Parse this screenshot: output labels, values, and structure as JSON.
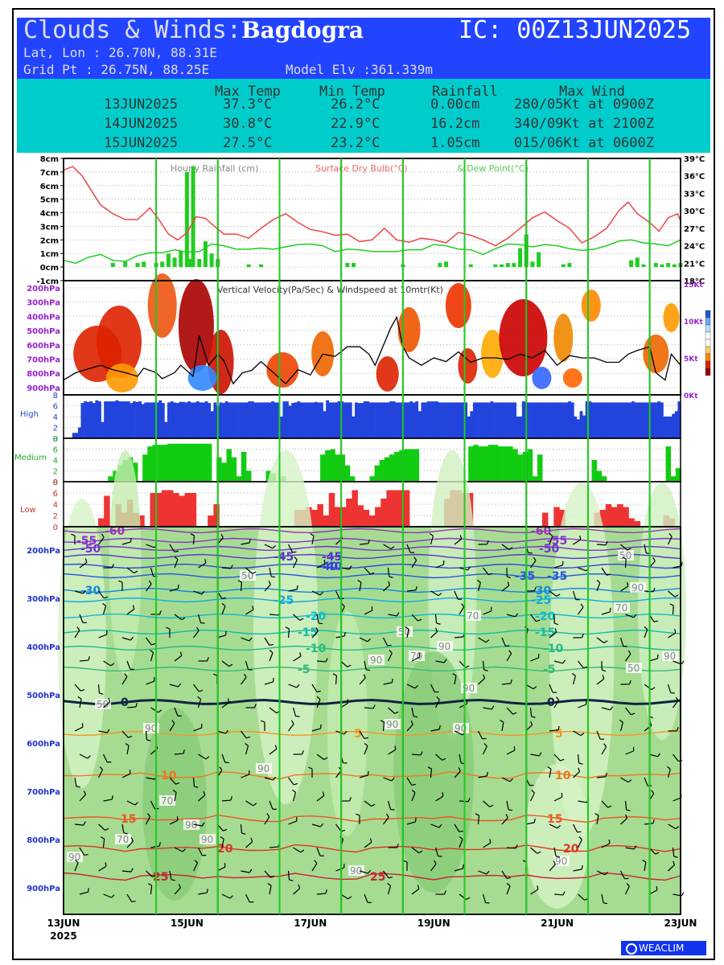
{
  "header": {
    "title": "Clouds & Winds:",
    "station": "Bagdogra",
    "ic": "IC: 00Z13JUN2025",
    "latlon": "Lat, Lon : 26.70N, 88.31E",
    "gridpt": "Grid Pt  : 26.75N, 88.25E",
    "elev": "Model Elv :361.339m"
  },
  "summary": {
    "headers": [
      "Max Temp",
      "Min Temp",
      "Rainfall",
      "Max Wind"
    ],
    "rows": [
      {
        "date": "13JUN2025",
        "max": "37.3°C",
        "min": "26.2°C",
        "rain": "0.00cm",
        "wind": "280/05Kt at 0900Z"
      },
      {
        "date": "14JUN2025",
        "max": "30.8°C",
        "min": "22.9°C",
        "rain": "16.2cm",
        "wind": "340/09Kt at 2100Z"
      },
      {
        "date": "15JUN2025",
        "max": "27.5°C",
        "min": "23.2°C",
        "rain": "1.05cm",
        "wind": "015/06Kt at 0600Z"
      }
    ]
  },
  "colors": {
    "rain": "#22cc22",
    "drybulb": "#ee4444",
    "dewpoint": "#22cc22",
    "high": "#2244dd",
    "medium": "#11cc11",
    "low": "#ee3333",
    "day_line": "#22cc22"
  },
  "chart_data": [
    {
      "type": "line",
      "title": "Hourly Rainfall (cm)    Surface Dry Bulb(°C)  & Dew Point(°C)",
      "legend": [
        "Hourly Rainfall (cm)",
        "Surface Dry Bulb(°C)",
        "& Dew Point(°C)"
      ],
      "left_ticks": [
        "8cm",
        "7cm",
        "6cm",
        "5cm",
        "4cm",
        "3cm",
        "2cm",
        "1cm",
        "0cm",
        "-1cm"
      ],
      "right_ticks": [
        "39°C",
        "36°C",
        "33°C",
        "30°C",
        "27°C",
        "24°C",
        "21°C",
        "18°C"
      ],
      "ylim_rain": [
        -1,
        8
      ],
      "ylim_temp": [
        18,
        39
      ],
      "x_days": [
        0,
        10
      ],
      "drybulb": [
        [
          0,
          37
        ],
        [
          0.15,
          37.6
        ],
        [
          0.3,
          36
        ],
        [
          0.45,
          33.5
        ],
        [
          0.6,
          31
        ],
        [
          0.8,
          29.5
        ],
        [
          1.0,
          28.5
        ],
        [
          1.2,
          28.5
        ],
        [
          1.4,
          30.5
        ],
        [
          1.55,
          28.4
        ],
        [
          1.7,
          26
        ],
        [
          1.85,
          25
        ],
        [
          2.0,
          26.2
        ],
        [
          2.15,
          29
        ],
        [
          2.3,
          28.7
        ],
        [
          2.45,
          27.3
        ],
        [
          2.6,
          26
        ],
        [
          2.8,
          26
        ],
        [
          3.0,
          25.3
        ],
        [
          3.2,
          27
        ],
        [
          3.4,
          28.5
        ],
        [
          3.6,
          29.5
        ],
        [
          3.8,
          28
        ],
        [
          4.0,
          26.8
        ],
        [
          4.2,
          26.4
        ],
        [
          4.4,
          25.8
        ],
        [
          4.6,
          26
        ],
        [
          4.8,
          24.7
        ],
        [
          5.0,
          25
        ],
        [
          5.2,
          27
        ],
        [
          5.4,
          25
        ],
        [
          5.6,
          24.6
        ],
        [
          5.8,
          25.3
        ],
        [
          6.0,
          25
        ],
        [
          6.2,
          24.5
        ],
        [
          6.4,
          26.3
        ],
        [
          6.6,
          25.8
        ],
        [
          6.8,
          25
        ],
        [
          7.0,
          24
        ],
        [
          7.2,
          25.3
        ],
        [
          7.4,
          27
        ],
        [
          7.6,
          28.8
        ],
        [
          7.8,
          29.8
        ],
        [
          8.0,
          28.3
        ],
        [
          8.2,
          27
        ],
        [
          8.4,
          24.5
        ],
        [
          8.6,
          25.5
        ],
        [
          8.8,
          27
        ],
        [
          9.0,
          30
        ],
        [
          9.15,
          31.5
        ],
        [
          9.3,
          29.5
        ],
        [
          9.5,
          28
        ],
        [
          9.65,
          26.5
        ],
        [
          9.8,
          28.8
        ],
        [
          9.95,
          29.5
        ],
        [
          10.0,
          28.3
        ]
      ],
      "dewpoint": [
        [
          0,
          21.5
        ],
        [
          0.2,
          21
        ],
        [
          0.4,
          22
        ],
        [
          0.6,
          22.5
        ],
        [
          0.8,
          21.5
        ],
        [
          1.0,
          21.3
        ],
        [
          1.2,
          22.3
        ],
        [
          1.4,
          22.8
        ],
        [
          1.6,
          22.8
        ],
        [
          1.8,
          23.3
        ],
        [
          2.0,
          22.9
        ],
        [
          2.2,
          23
        ],
        [
          2.4,
          24.3
        ],
        [
          2.6,
          24
        ],
        [
          2.8,
          23.4
        ],
        [
          3.0,
          23.4
        ],
        [
          3.2,
          23.6
        ],
        [
          3.4,
          23.4
        ],
        [
          3.6,
          23.8
        ],
        [
          3.8,
          24.2
        ],
        [
          4.0,
          24.3
        ],
        [
          4.2,
          24
        ],
        [
          4.4,
          23
        ],
        [
          4.6,
          23.4
        ],
        [
          4.8,
          23.3
        ],
        [
          5.0,
          23
        ],
        [
          5.2,
          23
        ],
        [
          5.4,
          23
        ],
        [
          5.6,
          23.3
        ],
        [
          5.8,
          23.3
        ],
        [
          6.0,
          24.2
        ],
        [
          6.2,
          24
        ],
        [
          6.4,
          23.4
        ],
        [
          6.6,
          23.3
        ],
        [
          6.8,
          22.5
        ],
        [
          7.0,
          23.5
        ],
        [
          7.2,
          24.3
        ],
        [
          7.4,
          24.2
        ],
        [
          7.6,
          23.8
        ],
        [
          7.8,
          24.2
        ],
        [
          8.0,
          24
        ],
        [
          8.2,
          23.5
        ],
        [
          8.4,
          23.2
        ],
        [
          8.6,
          23.4
        ],
        [
          8.8,
          24
        ],
        [
          9.0,
          24.8
        ],
        [
          9.2,
          25
        ],
        [
          9.4,
          24.5
        ],
        [
          9.6,
          24.3
        ],
        [
          9.8,
          24
        ],
        [
          10.0,
          25
        ]
      ],
      "rain": [
        [
          0.8,
          0.3
        ],
        [
          1.0,
          0.4
        ],
        [
          1.2,
          0.3
        ],
        [
          1.3,
          0.4
        ],
        [
          1.5,
          0.3
        ],
        [
          1.6,
          0.4
        ],
        [
          1.7,
          1.0
        ],
        [
          1.8,
          0.7
        ],
        [
          1.9,
          1.2
        ],
        [
          2.0,
          7.0
        ],
        [
          2.05,
          0.6
        ],
        [
          2.1,
          7.4
        ],
        [
          2.2,
          0.6
        ],
        [
          2.3,
          1.9
        ],
        [
          2.4,
          1.0
        ],
        [
          2.5,
          0.6
        ],
        [
          3.0,
          0.2
        ],
        [
          3.2,
          0.2
        ],
        [
          4.6,
          0.3
        ],
        [
          4.7,
          0.3
        ],
        [
          5.5,
          0.2
        ],
        [
          6.1,
          0.3
        ],
        [
          6.2,
          0.4
        ],
        [
          6.6,
          0.2
        ],
        [
          7.0,
          0.2
        ],
        [
          7.1,
          0.2
        ],
        [
          7.2,
          0.3
        ],
        [
          7.3,
          0.3
        ],
        [
          7.4,
          1.4
        ],
        [
          7.5,
          2.4
        ],
        [
          7.6,
          0.4
        ],
        [
          7.7,
          1.1
        ],
        [
          8.1,
          0.2
        ],
        [
          8.2,
          0.3
        ],
        [
          9.2,
          0.5
        ],
        [
          9.3,
          0.7
        ],
        [
          9.4,
          0.2
        ],
        [
          9.6,
          0.3
        ],
        [
          9.7,
          0.2
        ],
        [
          9.8,
          0.3
        ],
        [
          9.9,
          0.2
        ],
        [
          10.0,
          0.3
        ]
      ]
    },
    {
      "type": "heatmap",
      "title": "Vertical Velocity(Pa/Sec) & Windspeed at 10mtr(Kt)",
      "left_ticks": [
        "200hPa",
        "300hPa",
        "400hPa",
        "500hPa",
        "600hPa",
        "700hPa",
        "800hPa",
        "900hPa"
      ],
      "right_ticks": [
        "15Kt",
        "10Kt",
        "5Kt",
        "0Kt"
      ],
      "ylim_wind": [
        0,
        15
      ],
      "windspeed": [
        [
          0,
          2
        ],
        [
          0.2,
          3
        ],
        [
          0.4,
          3.5
        ],
        [
          0.6,
          4
        ],
        [
          0.8,
          3.4
        ],
        [
          1.0,
          3
        ],
        [
          1.2,
          2.5
        ],
        [
          1.3,
          3.6
        ],
        [
          1.5,
          3
        ],
        [
          1.6,
          2.2
        ],
        [
          1.8,
          3
        ],
        [
          1.9,
          4
        ],
        [
          2.1,
          2.5
        ],
        [
          2.2,
          8
        ],
        [
          2.35,
          4
        ],
        [
          2.5,
          5.5
        ],
        [
          2.6,
          4.6
        ],
        [
          2.75,
          1.5
        ],
        [
          2.9,
          3
        ],
        [
          3.05,
          3.3
        ],
        [
          3.2,
          4.5
        ],
        [
          3.4,
          3
        ],
        [
          3.6,
          1.5
        ],
        [
          3.8,
          3.4
        ],
        [
          4.0,
          2.7
        ],
        [
          4.2,
          5.5
        ],
        [
          4.4,
          5.2
        ],
        [
          4.6,
          6.5
        ],
        [
          4.8,
          6.5
        ],
        [
          4.95,
          5.5
        ],
        [
          5.05,
          4
        ],
        [
          5.2,
          7
        ],
        [
          5.3,
          9
        ],
        [
          5.4,
          10.5
        ],
        [
          5.5,
          6.5
        ],
        [
          5.6,
          5
        ],
        [
          5.8,
          4
        ],
        [
          6.0,
          5
        ],
        [
          6.2,
          4.5
        ],
        [
          6.4,
          5.8
        ],
        [
          6.6,
          4.4
        ],
        [
          6.8,
          5
        ],
        [
          7.0,
          5
        ],
        [
          7.2,
          4.8
        ],
        [
          7.4,
          5.5
        ],
        [
          7.6,
          5
        ],
        [
          7.8,
          6
        ],
        [
          8.0,
          4
        ],
        [
          8.2,
          5.3
        ],
        [
          8.4,
          5
        ],
        [
          8.6,
          5
        ],
        [
          8.8,
          4.4
        ],
        [
          9.0,
          4.4
        ],
        [
          9.15,
          5.5
        ],
        [
          9.3,
          6
        ],
        [
          9.5,
          6.5
        ],
        [
          9.6,
          3
        ],
        [
          9.75,
          2
        ],
        [
          9.85,
          5.5
        ],
        [
          10.0,
          4
        ]
      ]
    },
    {
      "type": "bar",
      "name": "High",
      "ylim": [
        0,
        8
      ],
      "ticks": [
        "8",
        "6",
        "4",
        "2",
        "0"
      ],
      "values": [
        0,
        0,
        0,
        1,
        1,
        2,
        6.5,
        6.8,
        6.7,
        6.8,
        6.5,
        7,
        6.8,
        3,
        6.8,
        6.8,
        6.8,
        6.8,
        7,
        6.8,
        6.8,
        6.8,
        6.8,
        6.5,
        6.8,
        6.7,
        6.8,
        6.3,
        6.6,
        6.6,
        6.6,
        6.6,
        6.6,
        7,
        6.5,
        3,
        6.6,
        6.8,
        6.6,
        6.5,
        6.7,
        6.7,
        6.6,
        6.8,
        6.6,
        6.6,
        6.8,
        6.6,
        6.6,
        6.8,
        6.5,
        5,
        6.6,
        6,
        6.6,
        6.5,
        6.8,
        6.6,
        6.6,
        6.6,
        6.6,
        6.6,
        6.6,
        6.6,
        6.8,
        6.8,
        6.6,
        6.6,
        6.6,
        6.6,
        6.6,
        6.6,
        6.8,
        6.6,
        6.6,
        4,
        6.8,
        6.8,
        6,
        6.5,
        6.6,
        6.8,
        6.6,
        6.6,
        6.6,
        6.6,
        6.6,
        6.7,
        6.6,
        6.6,
        5,
        7,
        6.6,
        6.6,
        6.6,
        6.8,
        6.8,
        6.6,
        6.6,
        6.6,
        4,
        6.6,
        6.5,
        6.5,
        6.8,
        6.8,
        6.6,
        6.6,
        6.6,
        6.6,
        6.6,
        6.6,
        6.6,
        6.8,
        6.8,
        6.6,
        6.6,
        6.6,
        6.6,
        6.6,
        6.8,
        6.6,
        6.8,
        5,
        6.6,
        6.6,
        6.8,
        6.8,
        6.8,
        6.8,
        6.6,
        6.6,
        6.6,
        6.6,
        6.6,
        6.6,
        6.6,
        6.6,
        6.6,
        6.6,
        4,
        5,
        6.6,
        6.6,
        6.6,
        6.6,
        6.6,
        6.6,
        6.8,
        6.6,
        6.6,
        6.6,
        6.6,
        6.6,
        6.6,
        6.6,
        6.6,
        4,
        4,
        6.8,
        6.6,
        6.6,
        6.6,
        6.6,
        6.6,
        6.6,
        6.6,
        6.6,
        6.6,
        6.6,
        6.6,
        6.6,
        6.6,
        6.6,
        6.6,
        6.8,
        6.6,
        4,
        3.5,
        5,
        4.2,
        6.8,
        6.8,
        6.6,
        6.6,
        6.6,
        6.6,
        6.6,
        6.6,
        6.6,
        6.6,
        6.6,
        6.6,
        6.6,
        6.6,
        6.6,
        6.6,
        6.8,
        6.6,
        6.6,
        6.6,
        6.6,
        6.6,
        6.6,
        6.6,
        6.6,
        6.8,
        6.6,
        4,
        4,
        4,
        4.5,
        5,
        6.8
      ]
    },
    {
      "type": "bar",
      "name": "Medium",
      "ylim": [
        0,
        8
      ],
      "ticks": [
        "8",
        "6",
        "4",
        "2",
        "0"
      ],
      "values": [
        0,
        0,
        0,
        0,
        0,
        0,
        0,
        0,
        0,
        1,
        2,
        3,
        4,
        4.5,
        3.5,
        0,
        5,
        6.5,
        6.8,
        6.8,
        6.8,
        7,
        7,
        7,
        7,
        7,
        7,
        7,
        7,
        7,
        0,
        4.5,
        3.5,
        6,
        4.5,
        1,
        5.5,
        2,
        0,
        0,
        0,
        2,
        1.5,
        0,
        1,
        0,
        0,
        0,
        0,
        0,
        0,
        0,
        5,
        5.8,
        6,
        5,
        5,
        3,
        1,
        0,
        0,
        0,
        1,
        3,
        4,
        4.5,
        5,
        5.5,
        5.8,
        6,
        6,
        6,
        0,
        0,
        0,
        0,
        0,
        0,
        0,
        0,
        0,
        0,
        6.5,
        6.8,
        6.5,
        6.5,
        6.8,
        6.8,
        6.5,
        6.5,
        6.5,
        6,
        5,
        5.5,
        6,
        1,
        5,
        0,
        0,
        0,
        0,
        0,
        0,
        0,
        0,
        0,
        0,
        4,
        2,
        1,
        0,
        0,
        0,
        0,
        0,
        0,
        0,
        0,
        0,
        0,
        0,
        0,
        6.5,
        1,
        2.5
      ]
    },
    {
      "type": "bar",
      "name": "Low",
      "ylim": [
        0,
        8
      ],
      "ticks": [
        "8",
        "6",
        "4",
        "2",
        "0"
      ],
      "values": [
        0,
        0,
        0,
        0,
        0,
        0,
        1.5,
        5.5,
        0,
        4,
        2.5,
        4.8,
        2.5,
        2,
        0,
        6,
        6,
        6.5,
        6.5,
        6,
        5.5,
        6,
        6,
        0,
        0,
        2,
        4,
        0,
        0,
        0,
        0,
        0,
        0,
        0,
        0,
        0,
        0,
        0,
        0,
        0,
        3,
        3,
        3.5,
        3,
        4,
        2,
        6,
        3.5,
        3.5,
        5,
        6.5,
        3.8,
        3,
        2,
        3.5,
        5,
        6.5,
        6.5,
        6.5,
        6.5,
        0,
        0,
        0,
        0,
        0,
        0,
        5,
        6.5,
        6.5,
        6,
        6,
        0,
        0,
        0,
        0,
        0,
        0,
        0,
        0,
        0,
        0,
        0,
        0,
        2.5,
        0,
        3.5,
        3,
        0,
        0,
        0,
        0,
        0,
        2.5,
        3,
        4,
        3.5,
        4,
        3.5,
        1.5,
        1,
        0,
        0,
        0,
        0,
        2,
        1.5,
        0
      ]
    },
    {
      "type": "heatmap",
      "title": "",
      "left_ticks": [
        "200hPa",
        "300hPa",
        "400hPa",
        "500hPa",
        "600hPa",
        "700hPa",
        "800hPa",
        "900hPa"
      ],
      "x_ticks": [
        "13JUN",
        "15JUN",
        "17JUN",
        "19JUN",
        "21JUN",
        "23JUN"
      ],
      "x_year": "2025",
      "temp_contours": [
        "-60",
        "-55",
        "-50",
        "-45",
        "-40",
        "-35",
        "-30",
        "-25",
        "-20",
        "-15",
        "-10",
        "-5",
        "0",
        "5",
        "10",
        "15",
        "20",
        "25"
      ],
      "rh_labels": [
        "50",
        "50",
        "90",
        "90",
        "70",
        "50",
        "90",
        "90",
        "90",
        "70",
        "50",
        "90",
        "90",
        "90",
        "70",
        "90",
        "90",
        "90",
        "90",
        "70",
        "50",
        "90",
        "90",
        "70"
      ]
    }
  ],
  "branding": "WEACLIM"
}
